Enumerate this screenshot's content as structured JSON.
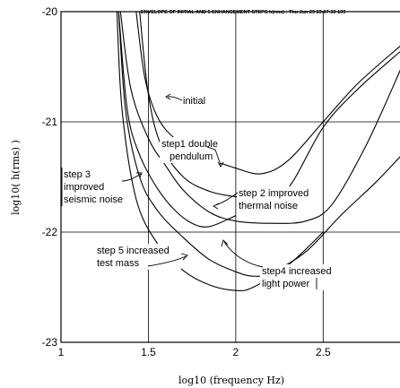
{
  "chart_data": {
    "type": "line",
    "header_text": "ENVELOPE OF INITIAL AND 5 ENHANCEMENT STEPS h(rms) : Thu Jun 29 23:07:33 199",
    "xlabel": "log10 (frequency Hz)",
    "ylabel": "log10( h(rms) )",
    "xlim": [
      1.0,
      2.95
    ],
    "ylim": [
      -23,
      -20
    ],
    "x_ticks": [
      "1",
      "1.5",
      "2",
      "2.5"
    ],
    "y_ticks": [
      "-20",
      "-21",
      "-22",
      "-23"
    ],
    "grid": true,
    "series": [
      {
        "name": "initial",
        "x": [
          1.43,
          1.48,
          1.55,
          1.65,
          1.8,
          2.0,
          2.15,
          2.3,
          2.5,
          2.7,
          2.95
        ],
        "y": [
          -20.0,
          -20.6,
          -20.95,
          -21.15,
          -21.3,
          -21.42,
          -21.47,
          -21.35,
          -21.0,
          -20.65,
          -20.3
        ]
      },
      {
        "name": "step1 double pendulum",
        "x": [
          1.45,
          1.5,
          1.57,
          1.7,
          1.85,
          2.0,
          2.15,
          2.3,
          2.5,
          2.7,
          2.95
        ],
        "y": [
          -20.0,
          -20.75,
          -21.2,
          -21.5,
          -21.63,
          -21.68,
          -21.7,
          -21.6,
          -21.05,
          -20.7,
          -20.35
        ]
      },
      {
        "name": "step 2 improved thermal noise",
        "x": [
          1.34,
          1.4,
          1.5,
          1.6,
          1.7,
          1.85,
          2.0,
          2.2,
          2.4,
          2.55,
          2.75,
          2.95
        ],
        "y": [
          -20.0,
          -20.7,
          -21.15,
          -21.4,
          -21.62,
          -21.82,
          -21.9,
          -21.92,
          -21.9,
          -21.75,
          -21.2,
          -20.5
        ]
      },
      {
        "name": "step 3 improved seismic noise",
        "x": [
          1.33,
          1.38,
          1.45,
          1.55,
          1.65,
          1.75,
          1.85,
          2.0
        ],
        "y": [
          -20.0,
          -20.9,
          -21.3,
          -21.6,
          -21.8,
          -21.92,
          -21.95,
          -21.85
        ]
      },
      {
        "name": "step4 increased light power",
        "x": [
          1.33,
          1.37,
          1.45,
          1.55,
          1.7,
          1.85,
          2.0,
          2.1,
          2.2,
          2.4,
          2.6,
          2.8,
          2.95
        ],
        "y": [
          -20.0,
          -20.9,
          -21.5,
          -21.8,
          -22.05,
          -22.25,
          -22.36,
          -22.4,
          -22.37,
          -22.18,
          -21.85,
          -21.55,
          -21.3
        ]
      },
      {
        "name": "step 5 increased test mass",
        "x": [
          1.32,
          1.35,
          1.43,
          1.55,
          1.7,
          1.85,
          2.0,
          2.1,
          2.3,
          2.5
        ],
        "y": [
          -20.0,
          -20.9,
          -21.7,
          -22.1,
          -22.35,
          -22.48,
          -22.53,
          -22.5,
          -22.3,
          -22.0
        ]
      }
    ],
    "annotations": [
      "initial",
      "step1 double",
      "pendulum",
      "step 2 improved",
      "thermal noise",
      "step 3",
      "improved",
      "seismic noise",
      "step 5 increased",
      "test mass",
      "step4 increased",
      "light power"
    ]
  }
}
